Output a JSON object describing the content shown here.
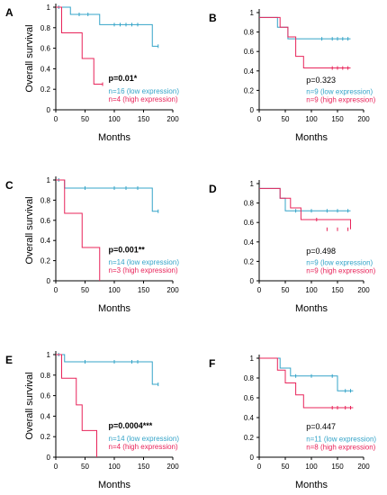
{
  "colors": {
    "low": "#35a4c8",
    "high": "#e8245a"
  },
  "chart_data": [
    {
      "type": "line",
      "panel": "A",
      "xlabel": "Months",
      "ylabel": "Overall survival",
      "xlim": [
        0,
        200
      ],
      "ylim": [
        0,
        1
      ],
      "xticks": [
        "0",
        "50",
        "100",
        "150",
        "200"
      ],
      "yticks": [
        "0",
        "0.2",
        "0.4",
        "0.6",
        "0.8",
        "1"
      ],
      "p_value": "p=0.01*",
      "p_significant": true,
      "series": [
        {
          "name": "n=16 (low expression)",
          "group": "low",
          "x": [
            0,
            25,
            75,
            165,
            175
          ],
          "y": [
            1,
            0.93,
            0.83,
            0.62,
            0.62
          ],
          "censored": [
            [
              5,
              1
            ],
            [
              40,
              0.93
            ],
            [
              55,
              0.93
            ],
            [
              100,
              0.83
            ],
            [
              110,
              0.83
            ],
            [
              120,
              0.83
            ],
            [
              130,
              0.83
            ],
            [
              140,
              0.83
            ],
            [
              175,
              0.62
            ]
          ]
        },
        {
          "name": "n=4 (high expression)",
          "group": "high",
          "x": [
            0,
            10,
            45,
            65,
            80
          ],
          "y": [
            1,
            0.75,
            0.5,
            0.25,
            0.25
          ],
          "censored": [
            [
              80,
              0.25
            ]
          ]
        }
      ]
    },
    {
      "type": "line",
      "panel": "B",
      "xlabel": "Months",
      "ylabel": "",
      "xlim": [
        0,
        200
      ],
      "ylim": [
        0,
        1
      ],
      "xticks": [
        "0",
        "50",
        "100",
        "150",
        "200"
      ],
      "yticks": [
        "0",
        "0.2",
        "0.4",
        "0.6",
        "0.8",
        "1"
      ],
      "p_value": "p=0.323",
      "p_significant": false,
      "series": [
        {
          "name": "n=9 (low expression)",
          "group": "low",
          "x": [
            0,
            35,
            55,
            70,
            175
          ],
          "y": [
            0.95,
            0.85,
            0.73,
            0.73,
            0.73
          ],
          "censored": [
            [
              120,
              0.73
            ],
            [
              140,
              0.73
            ],
            [
              150,
              0.73
            ],
            [
              160,
              0.73
            ],
            [
              170,
              0.73
            ]
          ]
        },
        {
          "name": "n=9 (high expression)",
          "group": "high",
          "x": [
            0,
            40,
            55,
            70,
            85,
            175
          ],
          "y": [
            0.95,
            0.85,
            0.75,
            0.55,
            0.43,
            0.43
          ],
          "censored": [
            [
              140,
              0.43
            ],
            [
              150,
              0.43
            ],
            [
              160,
              0.43
            ],
            [
              170,
              0.43
            ]
          ]
        }
      ]
    },
    {
      "type": "line",
      "panel": "C",
      "xlabel": "Months",
      "ylabel": "Overall survival",
      "xlim": [
        0,
        200
      ],
      "ylim": [
        0,
        1
      ],
      "xticks": [
        "0",
        "50",
        "100",
        "150",
        "200"
      ],
      "yticks": [
        "0",
        "0.2",
        "0.4",
        "0.6",
        "0.8",
        "1"
      ],
      "p_value": "p=0.001**",
      "p_significant": true,
      "series": [
        {
          "name": "n=14 (low expression)",
          "group": "low",
          "x": [
            0,
            15,
            165,
            175
          ],
          "y": [
            1,
            0.92,
            0.69,
            0.69
          ],
          "censored": [
            [
              5,
              1
            ],
            [
              50,
              0.92
            ],
            [
              100,
              0.92
            ],
            [
              120,
              0.92
            ],
            [
              140,
              0.92
            ],
            [
              175,
              0.69
            ]
          ]
        },
        {
          "name": "n=3 (high expression)",
          "group": "high",
          "x": [
            0,
            15,
            45,
            75
          ],
          "y": [
            1,
            0.67,
            0.33,
            0
          ],
          "censored": []
        }
      ]
    },
    {
      "type": "line",
      "panel": "D",
      "xlabel": "Months",
      "ylabel": "",
      "xlim": [
        0,
        200
      ],
      "ylim": [
        0,
        1
      ],
      "xticks": [
        "0",
        "50",
        "100",
        "150",
        "200"
      ],
      "yticks": [
        "0",
        "0.2",
        "0.4",
        "0.6",
        "0.8",
        "1"
      ],
      "p_value": "p=0.498",
      "p_significant": false,
      "series": [
        {
          "name": "n=9 (low expression)",
          "group": "low",
          "x": [
            0,
            40,
            50,
            65,
            175
          ],
          "y": [
            0.95,
            0.85,
            0.72,
            0.72,
            0.72
          ],
          "censored": [
            [
              70,
              0.72
            ],
            [
              100,
              0.72
            ],
            [
              130,
              0.72
            ],
            [
              150,
              0.72
            ],
            [
              170,
              0.72
            ]
          ]
        },
        {
          "name": "n=9 (high expression)",
          "group": "high",
          "x": [
            0,
            40,
            60,
            80,
            175
          ],
          "y": [
            0.95,
            0.85,
            0.75,
            0.63,
            0.53
          ],
          "censored": [
            [
              110,
              0.63
            ],
            [
              130,
              0.53
            ],
            [
              150,
              0.53
            ],
            [
              170,
              0.53
            ]
          ]
        }
      ]
    },
    {
      "type": "line",
      "panel": "E",
      "xlabel": "Months",
      "ylabel": "Overall survival",
      "xlim": [
        0,
        200
      ],
      "ylim": [
        0,
        1
      ],
      "xticks": [
        "0",
        "50",
        "100",
        "150",
        "200"
      ],
      "yticks": [
        "0",
        "0.2",
        "0.4",
        "0.6",
        "0.8",
        "1"
      ],
      "p_value": "p=0.0004***",
      "p_significant": true,
      "series": [
        {
          "name": "n=14 (low expression)",
          "group": "low",
          "x": [
            0,
            15,
            165,
            175
          ],
          "y": [
            1,
            0.93,
            0.71,
            0.71
          ],
          "censored": [
            [
              5,
              1
            ],
            [
              50,
              0.93
            ],
            [
              100,
              0.93
            ],
            [
              130,
              0.93
            ],
            [
              140,
              0.93
            ],
            [
              175,
              0.71
            ]
          ]
        },
        {
          "name": "n=4 (high expression)",
          "group": "high",
          "x": [
            0,
            10,
            35,
            45,
            70
          ],
          "y": [
            1,
            0.77,
            0.51,
            0.26,
            0
          ],
          "censored": []
        }
      ]
    },
    {
      "type": "line",
      "panel": "F",
      "xlabel": "Months",
      "ylabel": "",
      "xlim": [
        0,
        200
      ],
      "ylim": [
        0,
        1
      ],
      "xticks": [
        "0",
        "50",
        "100",
        "150",
        "200"
      ],
      "yticks": [
        "0",
        "0.2",
        "0.4",
        "0.6",
        "0.8",
        "1"
      ],
      "p_value": "p=0.447",
      "p_significant": false,
      "series": [
        {
          "name": "n=11 (low expression)",
          "group": "low",
          "x": [
            0,
            40,
            60,
            150,
            180
          ],
          "y": [
            1,
            0.9,
            0.82,
            0.67,
            0.67
          ],
          "censored": [
            [
              70,
              0.82
            ],
            [
              100,
              0.82
            ],
            [
              140,
              0.82
            ],
            [
              165,
              0.67
            ],
            [
              175,
              0.67
            ]
          ]
        },
        {
          "name": "n=8 (high expression)",
          "group": "high",
          "x": [
            0,
            35,
            50,
            70,
            85,
            180
          ],
          "y": [
            1,
            0.88,
            0.75,
            0.63,
            0.5,
            0.5
          ],
          "censored": [
            [
              140,
              0.5
            ],
            [
              150,
              0.5
            ],
            [
              165,
              0.5
            ],
            [
              175,
              0.5
            ]
          ]
        }
      ]
    }
  ]
}
